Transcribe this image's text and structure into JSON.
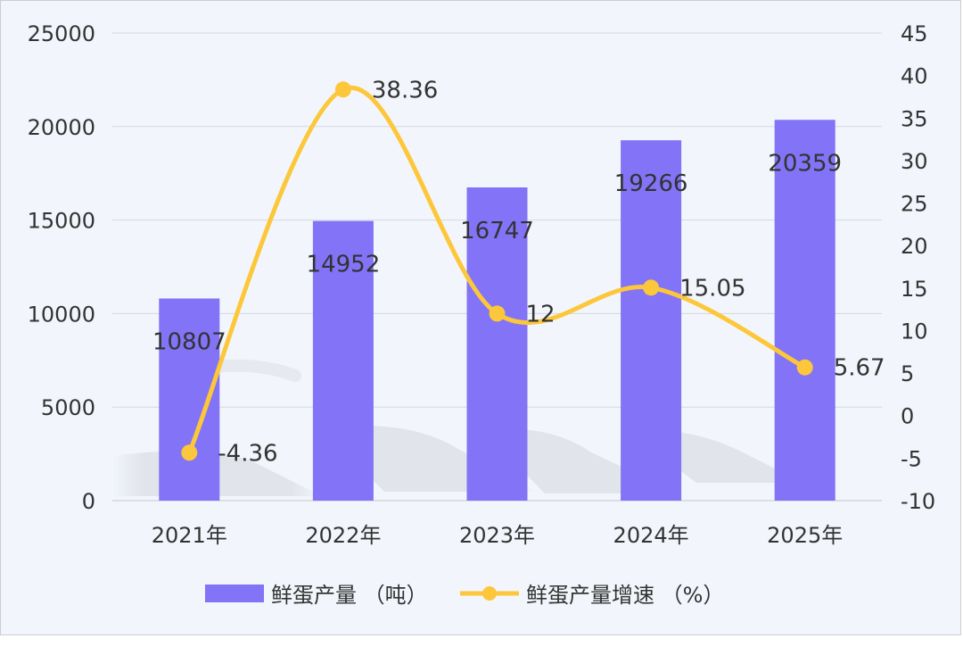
{
  "chart_data": {
    "type": "bar+line",
    "title": "",
    "categories": [
      "2021年",
      "2022年",
      "2023年",
      "2024年",
      "2025年"
    ],
    "series": [
      {
        "name": "鲜蛋产量 （吨）",
        "type": "bar",
        "axis": "left",
        "color": "#8373f6",
        "values": [
          10807,
          14952,
          16747,
          19266,
          20359
        ],
        "labels": [
          "10807",
          "14952",
          "16747",
          "19266",
          "20359"
        ]
      },
      {
        "name": "鲜蛋产量增速 （%）",
        "type": "line",
        "smooth": true,
        "axis": "right",
        "color": "#fcc73a",
        "values": [
          -4.36,
          38.36,
          12,
          15.05,
          5.67
        ],
        "labels": [
          "-4.36",
          "38.36",
          "12",
          "15.05",
          "5.67"
        ]
      }
    ],
    "y_left": {
      "min": 0,
      "max": 25000,
      "ticks": [
        0,
        5000,
        10000,
        15000,
        20000,
        25000
      ],
      "tick_labels": [
        "0",
        "5000",
        "10000",
        "15000",
        "20000",
        "25000"
      ]
    },
    "y_right": {
      "min": -10,
      "max": 45,
      "ticks": [
        -10,
        -5,
        0,
        5,
        10,
        15,
        20,
        25,
        30,
        35,
        40,
        45
      ],
      "tick_labels": [
        "-10",
        "-5",
        "0",
        "5",
        "10",
        "15",
        "20",
        "25",
        "30",
        "35",
        "40",
        "45"
      ]
    },
    "grid": true,
    "legend_position": "bottom"
  }
}
